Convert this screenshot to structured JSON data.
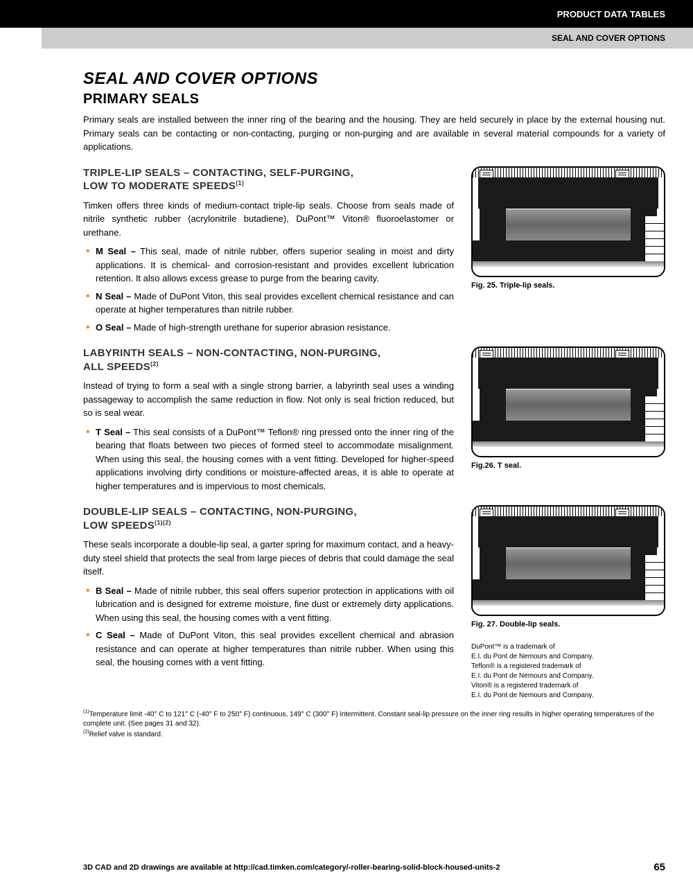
{
  "header": {
    "black_bar": "PRODUCT DATA TABLES",
    "gray_bar": "SEAL AND COVER OPTIONS"
  },
  "title": "SEAL AND COVER OPTIONS",
  "subtitle": "PRIMARY SEALS",
  "intro": "Primary seals are installed between the inner ring of the bearing and the housing. They are held securely in place by the external housing nut. Primary seals can be contacting or non-contacting, purging or non-purging and are available in several material compounds for a variety of applications.",
  "sec1": {
    "head_l1": "TRIPLE-LIP SEALS – CONTACTING, SELF-PURGING,",
    "head_l2": "LOW TO MODERATE SPEEDS",
    "sup": "(1)",
    "body": "Timken offers three kinds of medium-contact triple-lip seals. Choose from seals made of nitrile synthetic rubber (acrylonitrile butadiene), DuPont™ Viton® fluoroelastomer or urethane.",
    "items": [
      {
        "b": "M Seal –",
        "t": " This seal, made of nitrile rubber, offers superior sealing in moist and dirty applications. It is chemical- and corrosion-resistant and provides excellent lubrication retention. It also allows excess grease to purge from the bearing cavity."
      },
      {
        "b": "N Seal –",
        "t": " Made of DuPont Viton, this seal provides excellent chemical resistance and can operate at higher temperatures than nitrile rubber."
      },
      {
        "b": "O Seal –",
        "t": " Made of high-strength urethane for superior abrasion resistance."
      }
    ],
    "fig": "Fig. 25. Triple-lip seals."
  },
  "sec2": {
    "head_l1": "LABYRINTH SEALS – NON-CONTACTING, NON-PURGING,",
    "head_l2": "ALL SPEEDS",
    "sup": "(2)",
    "body": "Instead of trying to form a seal with a single strong barrier, a labyrinth seal uses a winding passageway to accomplish the same reduction in flow. Not only is seal friction reduced, but so is seal wear.",
    "items": [
      {
        "b": "T Seal –",
        "t": " This seal consists of a DuPont™ Teflon® ring pressed onto the inner ring of the bearing that floats between two pieces of formed steel to accommodate misalignment. When using this seal, the housing comes with a vent fitting. Developed for higher-speed applications involving dirty conditions or moisture-affected areas, it is able to operate at higher temperatures and is impervious to most chemicals."
      }
    ],
    "fig": "Fig.26. T seal."
  },
  "sec3": {
    "head_l1": "DOUBLE-LIP SEALS – CONTACTING, NON-PURGING,",
    "head_l2": "LOW SPEEDS",
    "sup": "(1)(2)",
    "body": "These seals incorporate a double-lip seal, a garter spring for maximum contact, and a heavy-duty steel shield that protects the seal from large pieces of debris that could damage the seal itself.",
    "items": [
      {
        "b": "B Seal –",
        "t": " Made of nitrile rubber, this seal offers superior protection in applications with oil lubrication and is designed for extreme moisture, fine dust or extremely dirty applications. When using this seal, the housing comes with a vent fitting."
      },
      {
        "b": "C Seal –",
        "t": " Made of DuPont Viton, this seal provides excellent chemical and abrasion resistance and can operate at higher temperatures than nitrile rubber. When using this seal, the housing comes with a vent fitting."
      }
    ],
    "fig": "Fig. 27. Double-lip seals."
  },
  "trademark": "DuPont™ is a trademark of\nE.I. du Pont de Nemours and Company.\nTeflon® is a registered trademark of\nE.I. du Pont de Nemours and Company.\nViton® is a registered trademark of\nE.I. du Pont de Nemours and Company.",
  "footnotes": {
    "f1": "Temperature limit -40° C to 121° C (-40° F to 250° F) continuous, 149° C (300° F) intermittent. Constant seal-lip pressure on the inner ring results in higher operating temperatures of the complete unit. (See pages 31 and 32).",
    "f2": "Relief valve is standard."
  },
  "footer": {
    "text": "3D CAD and 2D drawings are available at http://cad.timken.com/category/-roller-bearing-solid-block-housed-units-2",
    "page": "65"
  }
}
